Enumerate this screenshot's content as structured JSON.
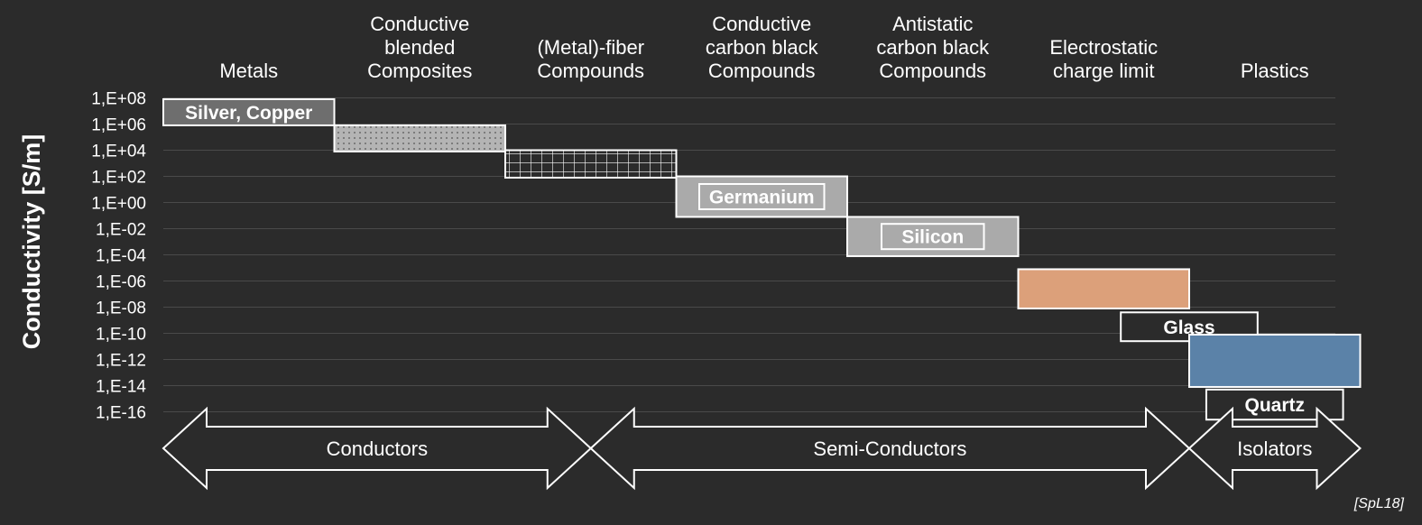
{
  "chart_data": {
    "type": "bar",
    "ylabel": "Conductivity [S/m]",
    "yscale": "log",
    "ylim": [
      1e-16,
      100000000.0
    ],
    "yticks": [
      "1,E+08",
      "1,E+06",
      "1,E+04",
      "1,E+02",
      "1,E+00",
      "1,E-02",
      "1,E-04",
      "1,E-06",
      "1,E-08",
      "1,E-10",
      "1,E-12",
      "1,E-14",
      "1,E-16"
    ],
    "ytick_exponents": [
      8,
      6,
      4,
      2,
      0,
      -2,
      -4,
      -6,
      -8,
      -10,
      -12,
      -14,
      -16
    ],
    "categories": [
      [
        "Metals"
      ],
      [
        "Conductive",
        "blended",
        "Composites"
      ],
      [
        "(Metal)-fiber",
        "Compounds"
      ],
      [
        "Conductive",
        "carbon black",
        "Compounds"
      ],
      [
        "Antistatic",
        "carbon black",
        "Compounds"
      ],
      [
        "Electrostatic",
        "charge limit"
      ],
      [
        "Plastics"
      ]
    ],
    "grid": true,
    "bars": [
      {
        "label": "Silver, Copper",
        "log_range": [
          5.9,
          7.9
        ],
        "col_start": 0,
        "col_end": 1,
        "fill": "#6e6e6e",
        "pattern": "none",
        "label_boxed": false
      },
      {
        "label": "",
        "log_range": [
          3.9,
          5.9
        ],
        "col_start": 1,
        "col_end": 2,
        "fill": "#b4b4b4",
        "pattern": "dots",
        "label_boxed": false
      },
      {
        "label": "",
        "log_range": [
          1.9,
          4.0
        ],
        "col_start": 2,
        "col_end": 3,
        "fill": "#2b2b2b",
        "pattern": "grid",
        "label_boxed": false
      },
      {
        "label": "Germanium",
        "log_range": [
          -1.1,
          2.0
        ],
        "col_start": 3,
        "col_end": 4,
        "fill": "#aaaaaa",
        "pattern": "none",
        "label_boxed": true
      },
      {
        "label": "Silicon",
        "log_range": [
          -4.1,
          -1.1
        ],
        "col_start": 4,
        "col_end": 5,
        "fill": "#aaaaaa",
        "pattern": "none",
        "label_boxed": true
      },
      {
        "label": "",
        "log_range": [
          -8.1,
          -5.1
        ],
        "col_start": 5,
        "col_end": 6,
        "fill": "#dca07a",
        "pattern": "none",
        "label_boxed": false
      },
      {
        "label": "Glass",
        "log_range": [
          -10.6,
          -8.4
        ],
        "col_start": 5.6,
        "col_end": 6.4,
        "fill": "#2b2b2b",
        "pattern": "none",
        "label_boxed": false
      },
      {
        "label": "",
        "log_range": [
          -14.1,
          -10.1
        ],
        "col_start": 6,
        "col_end": 7,
        "fill": "#5b82a8",
        "pattern": "none",
        "label_boxed": false
      },
      {
        "label": "Quartz",
        "log_range": [
          -16.6,
          -14.3
        ],
        "col_start": 6.1,
        "col_end": 6.9,
        "fill": "#2b2b2b",
        "pattern": "none",
        "label_boxed": false
      }
    ],
    "classes": [
      {
        "label": "Conductors",
        "col_start": 0,
        "col_end": 2.5
      },
      {
        "label": "Semi-Conductors",
        "col_start": 2.5,
        "col_end": 6
      },
      {
        "label": "Isolators",
        "col_start": 6,
        "col_end": 7
      }
    ]
  },
  "source": "[SpL18]"
}
